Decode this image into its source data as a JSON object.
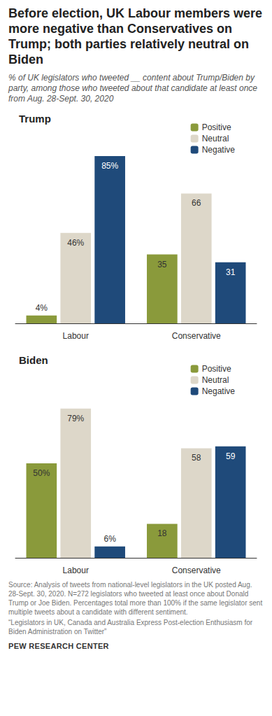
{
  "title": "Before election, UK Labour members were more negative than Conservatives on Trump; both parties relatively neutral on Biden",
  "subtitle": "% of UK legislators who tweeted __ content about Trump/Biden by party, among those who tweeted about that candidate at least once from Aug. 28-Sept. 30, 2020",
  "notes": [
    "Source: Analysis of tweets from national-level legislators in the UK posted Aug. 28-Sept. 30, 2020. N=272 legislators who tweeted at least once about Donald Trump or Joe Biden. Percentages total more than 100% if the same legislator sent multiple tweets about a candidate with different sentiment.",
    "“Legislators in UK, Canada and Australia Express Post-election Enthusiasm for Biden Administration on Twitter”"
  ],
  "source_label": "PEW RESEARCH CENTER",
  "chart_data": [
    {
      "type": "bar",
      "title": "Trump",
      "categories": [
        "Labour",
        "Conservative"
      ],
      "series": [
        {
          "name": "Positive",
          "color": "#8a9a3b",
          "values": [
            4,
            35
          ],
          "value_labels": [
            "4%",
            "35"
          ]
        },
        {
          "name": "Neutral",
          "color": "#ddd7c9",
          "values": [
            46,
            66
          ],
          "value_labels": [
            "46%",
            "66"
          ]
        },
        {
          "name": "Negative",
          "color": "#1f4a7a",
          "values": [
            85,
            31
          ],
          "value_labels": [
            "85%",
            "31"
          ]
        }
      ],
      "ylim": [
        0,
        90
      ],
      "data_labels": true,
      "legend": "top-right",
      "grid": false,
      "tick_labels": "x"
    },
    {
      "type": "bar",
      "title": "Biden",
      "categories": [
        "Labour",
        "Conservative"
      ],
      "series": [
        {
          "name": "Positive",
          "color": "#8a9a3b",
          "values": [
            50,
            18
          ],
          "value_labels": [
            "50%",
            "18"
          ]
        },
        {
          "name": "Neutral",
          "color": "#ddd7c9",
          "values": [
            79,
            58
          ],
          "value_labels": [
            "79%",
            "58"
          ]
        },
        {
          "name": "Negative",
          "color": "#1f4a7a",
          "values": [
            6,
            59
          ],
          "value_labels": [
            "6%",
            "59"
          ]
        }
      ],
      "ylim": [
        0,
        90
      ],
      "data_labels": true,
      "legend": "top-right",
      "grid": false,
      "tick_labels": "x"
    }
  ]
}
